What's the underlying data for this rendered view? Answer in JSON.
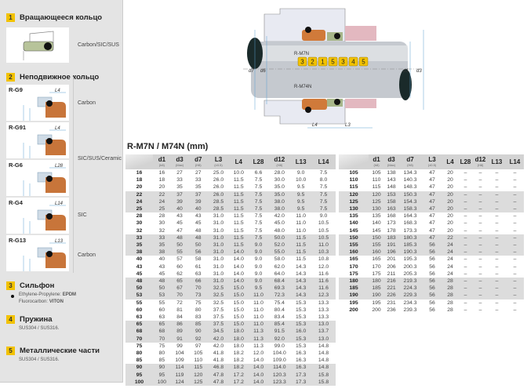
{
  "left_panel": {
    "sections": [
      {
        "num": "1",
        "title": "Вращающееся кольцо",
        "material": "Carbon/SIC/SUS"
      },
      {
        "num": "2",
        "title": "Неподвижное кольцо"
      },
      {
        "num": "3",
        "title": "Сильфон",
        "lines": [
          {
            "label": "Ethylene-Propylene: ",
            "value": "EPDM"
          },
          {
            "label": "Fluorocarbon: ",
            "value": "VITON"
          }
        ]
      },
      {
        "num": "4",
        "title": "Пружина",
        "sub": "SUS304 / SUS316."
      },
      {
        "num": "5",
        "title": "Металлические части",
        "sub": "SUS304 / SUS316."
      }
    ],
    "seats": [
      {
        "name": "R-G9",
        "dim": "L4",
        "material": "Carbon"
      },
      {
        "name": "R-G91",
        "dim": "L4",
        "material": "SIC/SUS/Ceramic"
      },
      {
        "name": "R-G6",
        "dim": "L28"
      },
      {
        "name": "R-G4",
        "dim": "L14",
        "material": "SIC"
      },
      {
        "name": "R-G13",
        "dim": "L13",
        "material": "Carbon"
      }
    ]
  },
  "diagram": {
    "label_top": "R-M7N",
    "label_bottom": "R-M74N",
    "callouts": [
      "3",
      "2",
      "1",
      "5",
      "3",
      "4",
      "5"
    ],
    "dims": [
      "d7",
      "d6",
      "d1",
      "d3",
      "L4",
      "L3"
    ],
    "accent": "#f2c200"
  },
  "table": {
    "title": "R-M7N / M74N (mm)",
    "headers": [
      {
        "n": "d1",
        "s": "(h8)"
      },
      {
        "n": "d3",
        "s": "(Max)"
      },
      {
        "n": "d7",
        "s": "(H8)"
      },
      {
        "n": "L3",
        "s": "(±0.5)"
      },
      {
        "n": "L4",
        "s": ""
      },
      {
        "n": "L28",
        "s": ""
      },
      {
        "n": "d12",
        "s": "(H8)"
      },
      {
        "n": "L13",
        "s": ""
      },
      {
        "n": "L14",
        "s": ""
      }
    ],
    "left_rows": [
      [
        "16",
        "16",
        "27",
        "27",
        "25.0",
        "10.0",
        "6.6",
        "28.0",
        "9.0",
        "7.5"
      ],
      [
        "18",
        "18",
        "33",
        "33",
        "26.0",
        "11.5",
        "7.5",
        "30.0",
        "10.0",
        "8.0"
      ],
      [
        "20",
        "20",
        "35",
        "35",
        "26.0",
        "11.5",
        "7.5",
        "35.0",
        "9.5",
        "7.5"
      ],
      [
        "22",
        "22",
        "37",
        "37",
        "26.0",
        "11.5",
        "7.5",
        "35.0",
        "9.5",
        "7.5"
      ],
      [
        "24",
        "24",
        "39",
        "39",
        "28.5",
        "11.5",
        "7.5",
        "38.0",
        "9.5",
        "7.5"
      ],
      [
        "25",
        "25",
        "40",
        "40",
        "28.5",
        "11.5",
        "7.5",
        "38.0",
        "9.5",
        "7.5"
      ],
      [
        "28",
        "28",
        "43",
        "43",
        "31.0",
        "11.5",
        "7.5",
        "42.0",
        "11.0",
        "9.0"
      ],
      [
        "30",
        "30",
        "45",
        "45",
        "31.0",
        "11.5",
        "7.5",
        "45.0",
        "11.0",
        "10.5"
      ],
      [
        "32",
        "32",
        "47",
        "48",
        "31.0",
        "11.5",
        "7.5",
        "48.0",
        "11.0",
        "10.5"
      ],
      [
        "33",
        "33",
        "48",
        "48",
        "31.0",
        "11.5",
        "7.5",
        "50.0",
        "11.5",
        "10.5"
      ],
      [
        "35",
        "35",
        "50",
        "50",
        "31.0",
        "11.5",
        "9.0",
        "52.0",
        "11.5",
        "11.0"
      ],
      [
        "38",
        "38",
        "55",
        "56",
        "31.0",
        "14.0",
        "9.0",
        "55.0",
        "11.5",
        "10.3"
      ],
      [
        "40",
        "40",
        "57",
        "58",
        "31.0",
        "14.0",
        "9.0",
        "58.0",
        "11.5",
        "10.8"
      ],
      [
        "43",
        "43",
        "60",
        "61",
        "31.0",
        "14.0",
        "9.0",
        "62.0",
        "14.3",
        "12.0"
      ],
      [
        "45",
        "45",
        "62",
        "63",
        "31.0",
        "14.0",
        "9.0",
        "64.0",
        "14.3",
        "11.6"
      ],
      [
        "48",
        "48",
        "65",
        "66",
        "31.0",
        "14.0",
        "9.0",
        "68.4",
        "14.3",
        "11.6"
      ],
      [
        "50",
        "50",
        "67",
        "70",
        "32.5",
        "15.0",
        "9.5",
        "69.3",
        "14.3",
        "11.6"
      ],
      [
        "53",
        "53",
        "70",
        "73",
        "32.5",
        "15.0",
        "11.0",
        "72.3",
        "14.3",
        "12.3"
      ],
      [
        "55",
        "55",
        "72",
        "75",
        "32.5",
        "15.0",
        "11.0",
        "75.4",
        "15.3",
        "13.3"
      ],
      [
        "60",
        "60",
        "81",
        "80",
        "37.5",
        "15.0",
        "11.0",
        "80.4",
        "15.3",
        "13.3"
      ],
      [
        "63",
        "63",
        "84",
        "83",
        "37.5",
        "15.0",
        "11.0",
        "83.4",
        "15.3",
        "13.3"
      ],
      [
        "65",
        "65",
        "86",
        "85",
        "37.5",
        "15.0",
        "11.0",
        "85.4",
        "15.3",
        "13.0"
      ],
      [
        "68",
        "68",
        "89",
        "90",
        "34.5",
        "18.0",
        "11.3",
        "91.5",
        "16.0",
        "13.7"
      ],
      [
        "70",
        "70",
        "91",
        "92",
        "42.0",
        "18.0",
        "11.3",
        "92.0",
        "15.3",
        "13.0"
      ],
      [
        "75",
        "75",
        "99",
        "97",
        "42.0",
        "18.0",
        "11.3",
        "99.0",
        "15.3",
        "14.8"
      ],
      [
        "80",
        "80",
        "104",
        "105",
        "41.8",
        "18.2",
        "12.0",
        "104.0",
        "16.3",
        "14.8"
      ],
      [
        "85",
        "85",
        "109",
        "110",
        "41.8",
        "18.2",
        "14.0",
        "109.0",
        "16.3",
        "14.8"
      ],
      [
        "90",
        "90",
        "114",
        "115",
        "46.8",
        "18.2",
        "14.0",
        "114.0",
        "16.3",
        "14.8"
      ],
      [
        "95",
        "95",
        "119",
        "120",
        "47.8",
        "17.2",
        "14.0",
        "120.3",
        "17.3",
        "15.8"
      ],
      [
        "100",
        "100",
        "124",
        "125",
        "47.8",
        "17.2",
        "14.0",
        "123.3",
        "17.3",
        "15.8"
      ]
    ],
    "right_rows": [
      [
        "105",
        "105",
        "138",
        "134.3",
        "47",
        "20",
        "–",
        "–",
        "–",
        "–"
      ],
      [
        "110",
        "110",
        "143",
        "140.3",
        "47",
        "20",
        "–",
        "–",
        "–",
        "–"
      ],
      [
        "115",
        "115",
        "148",
        "148.3",
        "47",
        "20",
        "–",
        "–",
        "–",
        "–"
      ],
      [
        "120",
        "120",
        "153",
        "150.3",
        "47",
        "20",
        "–",
        "–",
        "–",
        "–"
      ],
      [
        "125",
        "125",
        "158",
        "154.3",
        "47",
        "20",
        "–",
        "–",
        "–",
        "–"
      ],
      [
        "130",
        "130",
        "163",
        "158.3",
        "47",
        "20",
        "–",
        "–",
        "–",
        "–"
      ],
      [
        "135",
        "135",
        "168",
        "164.3",
        "47",
        "20",
        "–",
        "–",
        "–",
        "–"
      ],
      [
        "140",
        "140",
        "173",
        "168.3",
        "47",
        "20",
        "–",
        "–",
        "–",
        "–"
      ],
      [
        "145",
        "145",
        "178",
        "173.3",
        "47",
        "20",
        "–",
        "–",
        "–",
        "–"
      ],
      [
        "150",
        "150",
        "183",
        "180.3",
        "47",
        "22",
        "–",
        "–",
        "–",
        "–"
      ],
      [
        "155",
        "155",
        "191",
        "185.3",
        "56",
        "24",
        "–",
        "–",
        "–",
        "–"
      ],
      [
        "160",
        "160",
        "196",
        "190.3",
        "56",
        "24",
        "–",
        "–",
        "–",
        "–"
      ],
      [
        "165",
        "165",
        "201",
        "195.3",
        "56",
        "24",
        "–",
        "–",
        "–",
        "–"
      ],
      [
        "170",
        "170",
        "206",
        "200.3",
        "56",
        "24",
        "–",
        "–",
        "–",
        "–"
      ],
      [
        "175",
        "175",
        "211",
        "205.3",
        "56",
        "24",
        "–",
        "–",
        "–",
        "–"
      ],
      [
        "180",
        "180",
        "216",
        "219.3",
        "56",
        "28",
        "–",
        "–",
        "–",
        "–"
      ],
      [
        "185",
        "185",
        "221",
        "224.3",
        "56",
        "28",
        "–",
        "–",
        "–",
        "–"
      ],
      [
        "190",
        "190",
        "226",
        "229.3",
        "56",
        "28",
        "–",
        "–",
        "–",
        "–"
      ],
      [
        "195",
        "195",
        "231",
        "234.3",
        "56",
        "28",
        "–",
        "–",
        "–",
        "–"
      ],
      [
        "200",
        "200",
        "236",
        "239.3",
        "56",
        "28",
        "–",
        "–",
        "–",
        "–"
      ]
    ]
  }
}
